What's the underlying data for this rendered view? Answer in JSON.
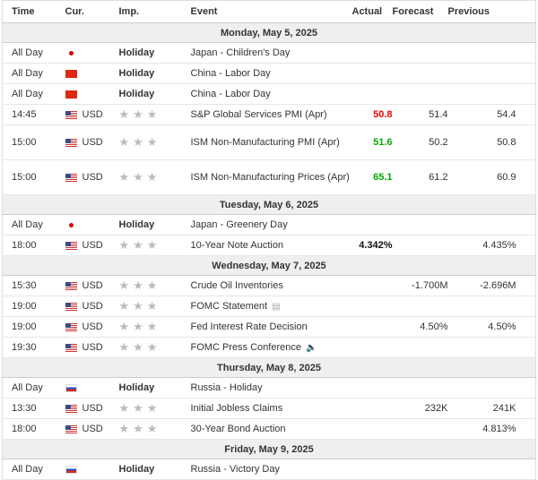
{
  "columns": {
    "time": "Time",
    "cur": "Cur.",
    "imp": "Imp.",
    "event": "Event",
    "actual": "Actual",
    "forecast": "Forecast",
    "previous": "Previous"
  },
  "colors": {
    "actual_worse": "#e00000",
    "actual_better": "#00a000"
  },
  "sections": [
    {
      "date": "Monday, May 5, 2025",
      "rows": [
        {
          "time": "All Day",
          "flag": "jp",
          "cur": "",
          "imp": "Holiday",
          "event": "Japan - Children's Day",
          "actual": "",
          "forecast": "",
          "previous": ""
        },
        {
          "time": "All Day",
          "flag": "cn",
          "cur": "",
          "imp": "Holiday",
          "event": "China - Labor Day",
          "actual": "",
          "forecast": "",
          "previous": ""
        },
        {
          "time": "All Day",
          "flag": "cn",
          "cur": "",
          "imp": "Holiday",
          "event": "China - Labor Day",
          "actual": "",
          "forecast": "",
          "previous": ""
        },
        {
          "time": "14:45",
          "flag": "us",
          "cur": "USD",
          "imp": "★★★",
          "event": "S&P Global Services PMI (Apr)",
          "actual": "50.8",
          "actual_style": "red",
          "forecast": "51.4",
          "previous": "54.4"
        },
        {
          "time": "15:00",
          "flag": "us",
          "cur": "USD",
          "imp": "★★★",
          "event": "ISM Non-Manufacturing PMI (Apr)",
          "tall": true,
          "actual": "51.6",
          "actual_style": "green",
          "forecast": "50.2",
          "previous": "50.8"
        },
        {
          "time": "15:00",
          "flag": "us",
          "cur": "USD",
          "imp": "★★★",
          "event": "ISM Non-Manufacturing Prices (Apr)",
          "tall": true,
          "actual": "65.1",
          "actual_style": "green",
          "forecast": "61.2",
          "previous": "60.9"
        }
      ]
    },
    {
      "date": "Tuesday, May 6, 2025",
      "rows": [
        {
          "time": "All Day",
          "flag": "jp",
          "cur": "",
          "imp": "Holiday",
          "event": "Japan - Greenery Day",
          "actual": "",
          "forecast": "",
          "previous": ""
        },
        {
          "time": "18:00",
          "flag": "us",
          "cur": "USD",
          "imp": "★★★",
          "event": "10-Year Note Auction",
          "actual": "4.342%",
          "actual_style": "bold",
          "forecast": "",
          "previous": "4.435%"
        }
      ]
    },
    {
      "date": "Wednesday, May 7, 2025",
      "rows": [
        {
          "time": "15:30",
          "flag": "us",
          "cur": "USD",
          "imp": "★★★",
          "event": "Crude Oil Inventories",
          "actual": "",
          "forecast": "-1.700M",
          "previous": "-2.696M"
        },
        {
          "time": "19:00",
          "flag": "us",
          "cur": "USD",
          "imp": "★★★",
          "event": "FOMC Statement",
          "icon": "document-icon",
          "actual": "",
          "forecast": "",
          "previous": ""
        },
        {
          "time": "19:00",
          "flag": "us",
          "cur": "USD",
          "imp": "★★★",
          "event": "Fed Interest Rate Decision",
          "actual": "",
          "forecast": "4.50%",
          "previous": "4.50%"
        },
        {
          "time": "19:30",
          "flag": "us",
          "cur": "USD",
          "imp": "★★★",
          "event": "FOMC Press Conference",
          "icon": "speaker-icon",
          "actual": "",
          "forecast": "",
          "previous": ""
        }
      ]
    },
    {
      "date": "Thursday, May 8, 2025",
      "rows": [
        {
          "time": "All Day",
          "flag": "ru",
          "cur": "",
          "imp": "Holiday",
          "event": "Russia - Holiday",
          "actual": "",
          "forecast": "",
          "previous": ""
        },
        {
          "time": "13:30",
          "flag": "us",
          "cur": "USD",
          "imp": "★★★",
          "event": "Initial Jobless Claims",
          "actual": "",
          "forecast": "232K",
          "previous": "241K"
        },
        {
          "time": "18:00",
          "flag": "us",
          "cur": "USD",
          "imp": "★★★",
          "event": "30-Year Bond Auction",
          "actual": "",
          "forecast": "",
          "previous": "4.813%"
        }
      ]
    },
    {
      "date": "Friday, May 9, 2025",
      "rows": [
        {
          "time": "All Day",
          "flag": "ru",
          "cur": "",
          "imp": "Holiday",
          "event": "Russia - Victory Day",
          "actual": "",
          "forecast": "",
          "previous": ""
        }
      ]
    }
  ]
}
